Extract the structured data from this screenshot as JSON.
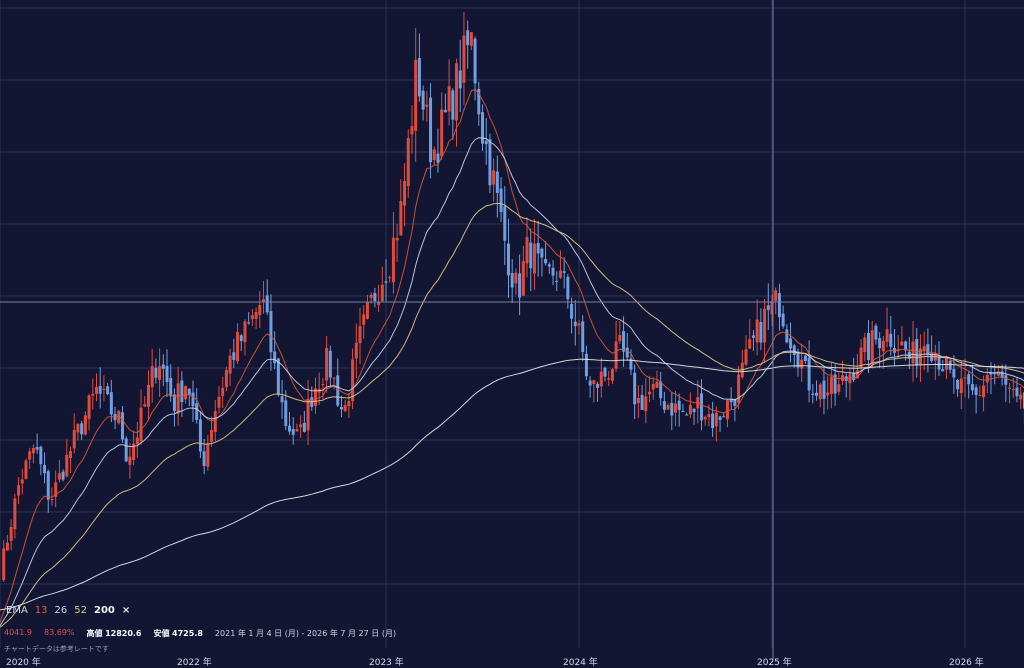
{
  "chart_data": {
    "type": "candlestick",
    "x_axis": {
      "ticks": [
        {
          "label": "2020 年",
          "pos": 0.0
        },
        {
          "label": "2022 年",
          "pos": 2.0
        },
        {
          "label": "2023 年",
          "pos": 3.0
        },
        {
          "label": "2024 年",
          "pos": 4.0
        },
        {
          "label": "2025 年",
          "pos": 5.0
        },
        {
          "label": "2026 年",
          "pos": 6.0
        }
      ],
      "domain_years": [
        2020.0,
        2026.28
      ]
    },
    "y_axis": {
      "range": [
        3600,
        13300
      ],
      "grid": true
    },
    "price_path": [
      [
        2020.0,
        4000
      ],
      [
        2020.1,
        5500
      ],
      [
        2020.18,
        6100
      ],
      [
        2020.26,
        5200
      ],
      [
        2020.4,
        6300
      ],
      [
        2020.5,
        7000
      ],
      [
        2020.62,
        6500
      ],
      [
        2020.66,
        5900
      ],
      [
        2020.72,
        6400
      ],
      [
        2020.82,
        7600
      ],
      [
        2020.9,
        6800
      ],
      [
        2020.97,
        7200
      ],
      [
        2021.05,
        5800
      ],
      [
        2021.12,
        6800
      ],
      [
        2021.2,
        7600
      ],
      [
        2021.28,
        8000
      ],
      [
        2021.36,
        8500
      ],
      [
        2021.42,
        7400
      ],
      [
        2021.48,
        6500
      ],
      [
        2021.55,
        6200
      ],
      [
        2021.62,
        7000
      ],
      [
        2021.7,
        7500
      ],
      [
        2021.78,
        6600
      ],
      [
        2021.86,
        7800
      ],
      [
        2021.94,
        8600
      ],
      [
        2022.02,
        9200
      ],
      [
        2022.08,
        10000
      ],
      [
        2022.16,
        12300
      ],
      [
        2022.24,
        10900
      ],
      [
        2022.3,
        11400
      ],
      [
        2022.38,
        12200
      ],
      [
        2022.44,
        12800
      ],
      [
        2022.5,
        11300
      ],
      [
        2022.56,
        10400
      ],
      [
        2022.62,
        9400
      ],
      [
        2022.68,
        8600
      ],
      [
        2022.74,
        9400
      ],
      [
        2022.82,
        8800
      ],
      [
        2022.88,
        9000
      ],
      [
        2022.94,
        8600
      ],
      [
        2023.0,
        7900
      ],
      [
        2023.06,
        7000
      ],
      [
        2023.14,
        7300
      ],
      [
        2023.22,
        7700
      ],
      [
        2023.3,
        6800
      ],
      [
        2023.38,
        7000
      ],
      [
        2023.46,
        6800
      ],
      [
        2023.56,
        6600
      ],
      [
        2023.62,
        6800
      ],
      [
        2023.7,
        6500
      ],
      [
        2023.8,
        6900
      ],
      [
        2023.88,
        7600
      ],
      [
        2023.96,
        8200
      ],
      [
        2024.04,
        8500
      ],
      [
        2024.08,
        8000
      ],
      [
        2024.12,
        7800
      ],
      [
        2024.18,
        7200
      ],
      [
        2024.26,
        7000
      ],
      [
        2024.34,
        7000
      ],
      [
        2024.42,
        7400
      ],
      [
        2024.5,
        7700
      ],
      [
        2024.58,
        8000
      ],
      [
        2024.66,
        7800
      ],
      [
        2024.72,
        7500
      ],
      [
        2024.8,
        7900
      ],
      [
        2024.88,
        7500
      ],
      [
        2024.94,
        7100
      ],
      [
        2025.0,
        7000
      ],
      [
        2025.06,
        6900
      ],
      [
        2025.12,
        7300
      ],
      [
        2025.18,
        7200
      ],
      [
        2025.28,
        6700
      ],
      [
        2025.34,
        6800
      ],
      [
        2025.38,
        6300
      ],
      [
        2025.46,
        6200
      ],
      [
        2025.5,
        6600
      ],
      [
        2025.56,
        6700
      ],
      [
        2025.62,
        6600
      ],
      [
        2025.7,
        6500
      ],
      [
        2025.76,
        6500
      ],
      [
        2025.82,
        6400
      ],
      [
        2025.88,
        6300
      ],
      [
        2025.96,
        6300
      ],
      [
        2026.02,
        6000
      ],
      [
        2026.08,
        6200
      ],
      [
        2026.14,
        6400
      ],
      [
        2026.2,
        6800
      ],
      [
        2026.22,
        6900
      ],
      [
        2026.25,
        8500
      ],
      [
        2026.26,
        10700
      ]
    ],
    "ema_periods": [
      13,
      26,
      52,
      200
    ],
    "colors": {
      "up": "#e14b3b",
      "down": "#6f9fe0",
      "ema13": "#d9583a",
      "ema26": "#c9d6ea",
      "ema52": "#e6c98a",
      "ema200": "#ecebe4",
      "grid": "#2c3156",
      "crosshair": "#7b80a3"
    }
  },
  "legend": {
    "indicator": "EMA",
    "periods": [
      "13",
      "26",
      "52",
      "200"
    ],
    "close_symbol": "×"
  },
  "stats": {
    "price": "4041.9",
    "change": "83.69%",
    "high_label": "高値",
    "high_value": "12820.6",
    "low_label": "安値",
    "low_value": "4725.8",
    "range": "2021 年 1 月 4 日 (月) - 2026 年 7 月 27 日 (月)"
  },
  "note": "チャートデータは参考レートです"
}
